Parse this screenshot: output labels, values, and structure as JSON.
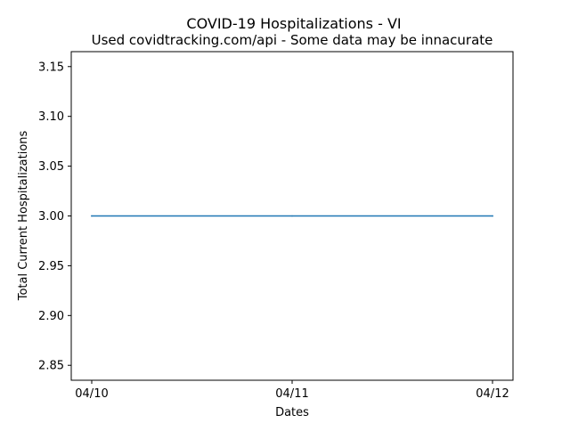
{
  "chart_data": {
    "type": "line",
    "title": "COVID-19 Hospitalizations - VI",
    "subtitle": "Used covidtracking.com/api - Some data may be innacurate",
    "xlabel": "Dates",
    "ylabel": "Total Current Hospitalizations",
    "x": [
      "04/10",
      "04/11",
      "04/12"
    ],
    "series": [
      {
        "values": [
          3.0,
          3.0,
          3.0
        ],
        "color": "#1f77b4"
      }
    ],
    "yticks": [
      "2.85",
      "2.90",
      "2.95",
      "3.00",
      "3.05",
      "3.10",
      "3.15"
    ],
    "ylim": [
      2.835,
      3.165
    ],
    "grid": false,
    "legend": "none"
  }
}
